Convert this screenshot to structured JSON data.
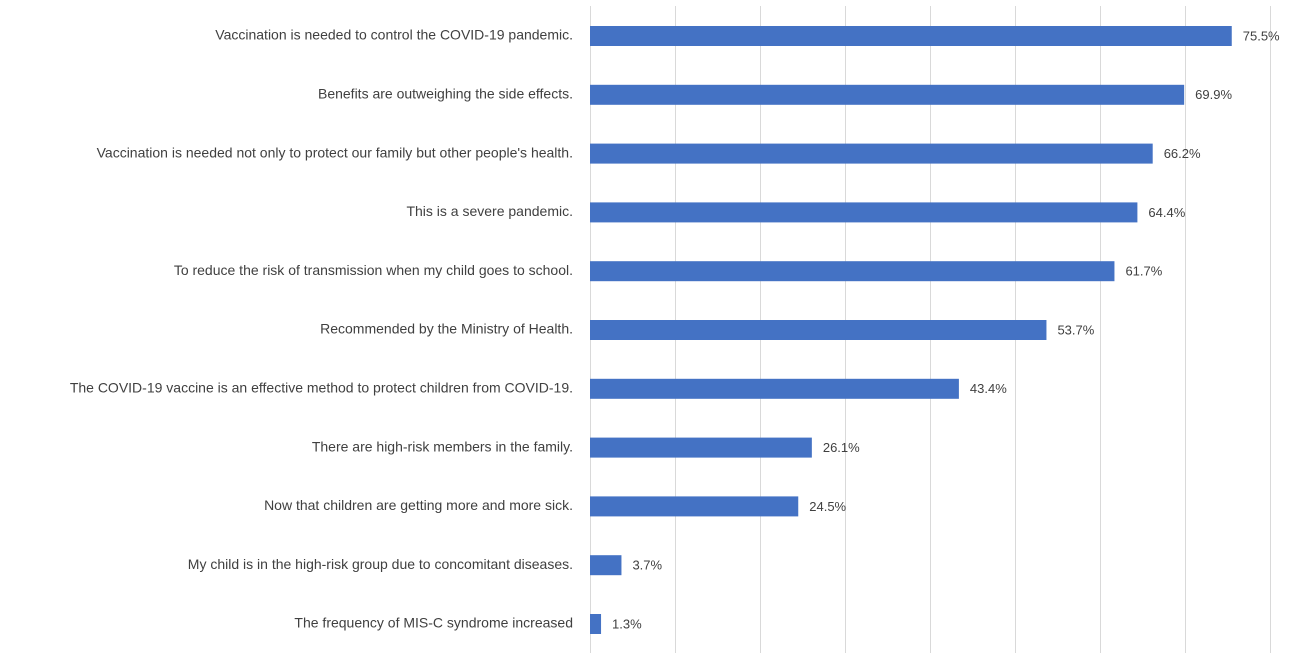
{
  "chart_data": {
    "type": "bar",
    "orientation": "horizontal",
    "title": "",
    "xlabel": "",
    "ylabel": "",
    "xlim": [
      0,
      80
    ],
    "grid_step": 10,
    "grid": true,
    "legend": "none",
    "bar_color": "#4472C4",
    "categories": [
      "Vaccination is needed to control the COVID-19 pandemic.",
      "Benefits are outweighing the side effects.",
      "Vaccination is needed not only to protect our family but other people's health.",
      "This is a severe pandemic.",
      "To reduce the risk of transmission when my child goes to school.",
      "Recommended by the Ministry of Health.",
      "The COVID-19 vaccine is an effective method to protect children from COVID-19.",
      "There are high-risk members in the family.",
      "Now that children are getting more and more sick.",
      "My child is in the high-risk group due to concomitant diseases.",
      "The frequency of MIS-C syndrome increased"
    ],
    "values": [
      75.5,
      69.9,
      66.2,
      64.4,
      61.7,
      53.7,
      43.4,
      26.1,
      24.5,
      3.7,
      1.3
    ],
    "value_labels": [
      "75.5%",
      "69.9%",
      "66.2%",
      "64.4%",
      "61.7%",
      "53.7%",
      "43.4%",
      "26.1%",
      "24.5%",
      "3.7%",
      "1.3%"
    ]
  }
}
